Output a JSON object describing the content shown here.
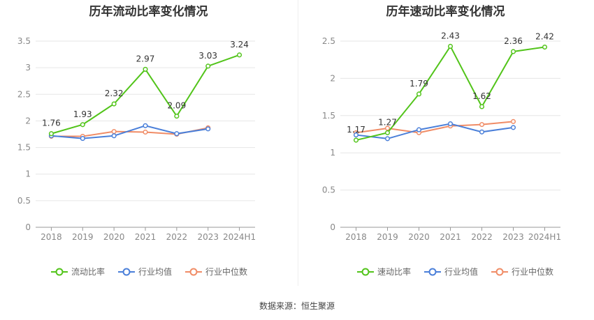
{
  "source_text": "数据来源：恒生聚源",
  "colors": {
    "company": "#52c41a",
    "industry_avg": "#4a7fd9",
    "industry_median": "#f08c66",
    "grid": "#e6e6e6",
    "axis": "#999999"
  },
  "chart_data": [
    {
      "type": "line",
      "title": "历年流动比率变化情况",
      "categories": [
        "2018",
        "2019",
        "2020",
        "2021",
        "2022",
        "2023",
        "2024H1"
      ],
      "ylim": [
        0,
        3.5
      ],
      "yticks": [
        "0",
        "0.5",
        "1",
        "1.5",
        "2",
        "2.5",
        "3",
        "3.5"
      ],
      "grid": true,
      "legend_position": "bottom",
      "series": [
        {
          "name": "流动比率",
          "key": "company",
          "values": [
            1.76,
            1.93,
            2.32,
            2.97,
            2.09,
            3.03,
            3.24
          ],
          "labels": true
        },
        {
          "name": "行业均值",
          "key": "industry_avg",
          "values": [
            1.72,
            1.67,
            1.72,
            1.91,
            1.76,
            1.85,
            null
          ]
        },
        {
          "name": "行业中位数",
          "key": "industry_median",
          "values": [
            1.71,
            1.71,
            1.8,
            1.79,
            1.75,
            1.87,
            null
          ]
        }
      ]
    },
    {
      "type": "line",
      "title": "历年速动比率变化情况",
      "categories": [
        "2018",
        "2019",
        "2020",
        "2021",
        "2022",
        "2023",
        "2024H1"
      ],
      "ylim": [
        0,
        2.5
      ],
      "yticks": [
        "0",
        "0.5",
        "1",
        "1.5",
        "2",
        "2.5"
      ],
      "grid": true,
      "legend_position": "bottom",
      "series": [
        {
          "name": "速动比率",
          "key": "company",
          "values": [
            1.17,
            1.27,
            1.79,
            2.43,
            1.62,
            2.36,
            2.42
          ],
          "labels": true
        },
        {
          "name": "行业均值",
          "key": "industry_avg",
          "values": [
            1.24,
            1.19,
            1.31,
            1.39,
            1.28,
            1.34,
            null
          ]
        },
        {
          "name": "行业中位数",
          "key": "industry_median",
          "values": [
            1.27,
            1.33,
            1.27,
            1.36,
            1.38,
            1.42,
            null
          ]
        }
      ]
    }
  ]
}
